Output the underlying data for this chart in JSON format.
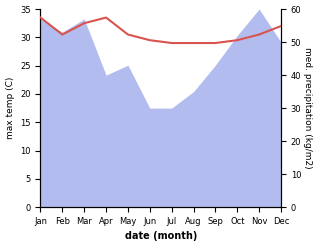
{
  "months": [
    "Jan",
    "Feb",
    "Mar",
    "Apr",
    "May",
    "Jun",
    "Jul",
    "Aug",
    "Sep",
    "Oct",
    "Nov",
    "Dec"
  ],
  "month_x": [
    0,
    1,
    2,
    3,
    4,
    5,
    6,
    7,
    8,
    9,
    10,
    11
  ],
  "temperature": [
    33.5,
    30.5,
    32.5,
    33.5,
    30.5,
    29.5,
    29.0,
    29.0,
    29.0,
    29.5,
    30.5,
    32.0
  ],
  "precipitation": [
    57,
    53,
    57,
    40,
    43,
    30,
    30,
    35,
    43,
    52,
    60,
    50
  ],
  "temp_color": "#d9534f",
  "precip_color": "#b3bcee",
  "temp_ylim": [
    0,
    35
  ],
  "precip_ylim": [
    0,
    60
  ],
  "temp_yticks": [
    0,
    5,
    10,
    15,
    20,
    25,
    30,
    35
  ],
  "precip_yticks": [
    0,
    10,
    20,
    30,
    40,
    50,
    60
  ],
  "xlabel": "date (month)",
  "ylabel_left": "max temp (C)",
  "ylabel_right": "med. precipitation (kg/m2)",
  "figsize": [
    3.18,
    2.47
  ],
  "dpi": 100
}
